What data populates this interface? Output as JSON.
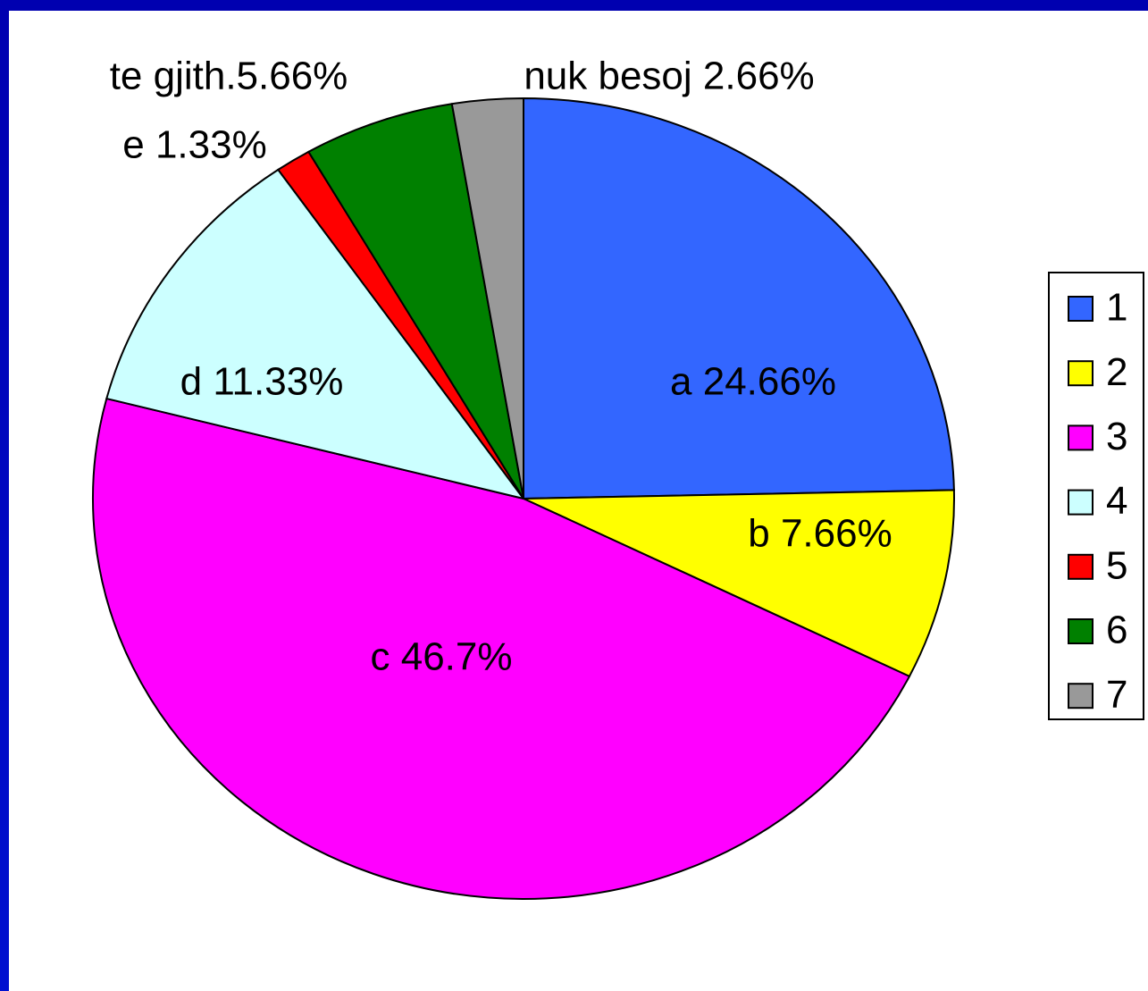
{
  "chart_data": {
    "type": "pie",
    "categories": [
      "1",
      "2",
      "3",
      "4",
      "5",
      "6",
      "7"
    ],
    "values": [
      24.66,
      7.66,
      46.7,
      11.33,
      1.33,
      5.66,
      2.66
    ],
    "value_labels": [
      "a 24.66%",
      "b 7.66%",
      "c 46.7%",
      "d 11.33%",
      "e 1.33%",
      "te gjith.5.66%",
      "nuk besoj 2.66%"
    ],
    "colors": [
      "#3366ff",
      "#ffff00",
      "#ff00ff",
      "#ccffff",
      "#ff0000",
      "#008000",
      "#999999"
    ],
    "legend": "right"
  }
}
